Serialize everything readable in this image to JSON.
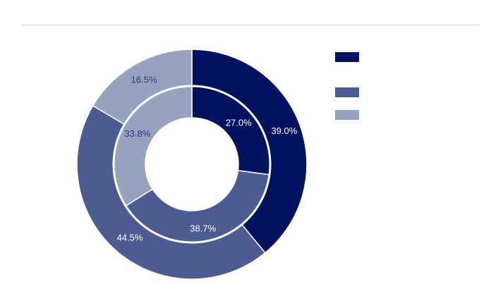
{
  "chart_data": {
    "type": "pie",
    "title": "",
    "legend_placement": "top-right",
    "rings": [
      {
        "ring": "outer",
        "values": [
          39.0,
          44.5,
          16.5
        ],
        "labels": [
          "39.0%",
          "44.5%",
          "16.5%"
        ]
      },
      {
        "ring": "inner",
        "values": [
          27.0,
          38.7,
          33.8
        ],
        "labels": [
          "27.0%",
          "38.7%",
          "33.8%"
        ]
      }
    ],
    "colors": [
      "#001260",
      "#4c5b91",
      "#97a2c1"
    ],
    "label_colors": [
      "#ffffff",
      "#ffffff",
      "#2a3a80"
    ]
  }
}
